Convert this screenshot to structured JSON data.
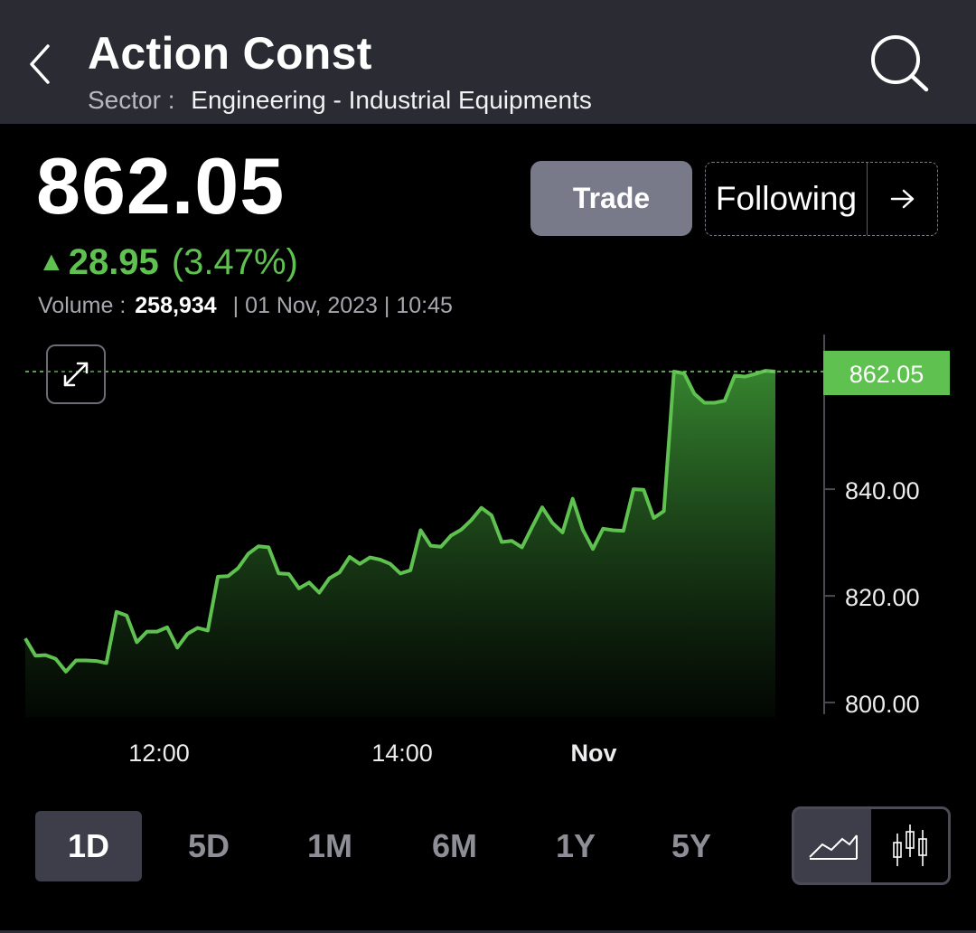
{
  "header": {
    "title": "Action Const",
    "sector_label": "Sector :",
    "sector_value": "Engineering - Industrial Equipments",
    "back_icon": "chevron-left-icon",
    "search_icon": "search-icon"
  },
  "quote": {
    "price": "862.05",
    "change_arrow": "▲",
    "change_abs": "28.95",
    "change_pct": "(3.47%)",
    "volume_label": "Volume :",
    "volume_value": "258,934",
    "timestamp": "| 01 Nov, 2023 | 10:45"
  },
  "actions": {
    "trade_label": "Trade",
    "follow_label": "Following",
    "arrow_icon": "arrow-right-icon"
  },
  "colors": {
    "up": "#5fc14f",
    "header_bg": "#2a2b33",
    "button_bg": "#787a89"
  },
  "chart_data": {
    "type": "area",
    "y_ticks": [
      "840.00",
      "820.00",
      "800.00"
    ],
    "x_ticks": [
      "12:00",
      "14:00",
      "Nov"
    ],
    "current_label": "862.05",
    "current_value": 862.05,
    "ylim": [
      797.8,
      869.6
    ],
    "grid": false,
    "y": [
      812.0,
      808.8,
      808.9,
      808.2,
      805.8,
      807.9,
      807.9,
      807.8,
      807.4,
      817.0,
      816.3,
      811.3,
      813.3,
      813.3,
      814.1,
      810.3,
      812.9,
      814.0,
      813.5,
      823.6,
      823.7,
      825.2,
      827.9,
      829.3,
      829.1,
      824.2,
      824.1,
      821.4,
      822.5,
      820.6,
      823.3,
      824.4,
      827.3,
      826.0,
      827.2,
      826.8,
      826.0,
      824.2,
      824.8,
      832.3,
      829.4,
      829.2,
      831.3,
      832.4,
      834.2,
      836.5,
      835.1,
      830.1,
      830.3,
      829.1,
      832.9,
      836.6,
      833.7,
      831.9,
      838.2,
      832.4,
      828.8,
      832.6,
      832.3,
      832.2,
      840.0,
      839.9,
      834.6,
      835.9,
      862.05,
      861.7,
      857.9,
      856.2,
      856.2,
      856.6,
      861.3,
      861.1,
      861.6,
      862.2,
      862.05
    ]
  },
  "range_tabs": [
    "1D",
    "5D",
    "1M",
    "6M",
    "1Y",
    "5Y"
  ],
  "active_range": "1D",
  "chart_types": [
    "line-chart-icon",
    "candlestick-icon"
  ]
}
